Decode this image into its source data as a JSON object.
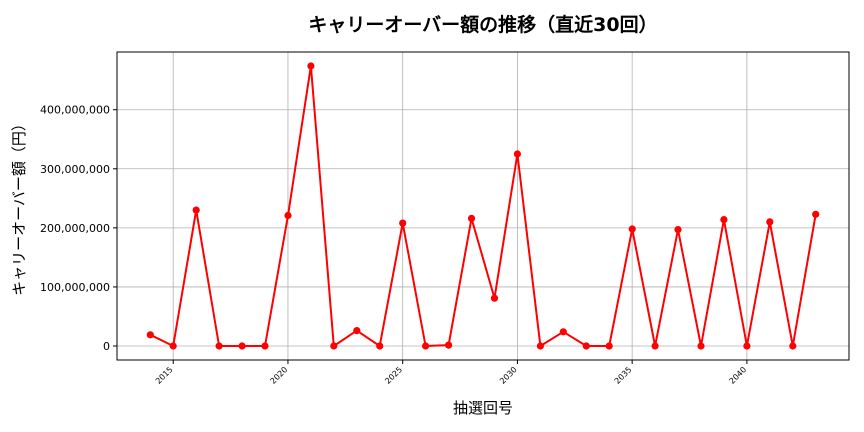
{
  "chart_data": {
    "type": "line",
    "title": "キャリーオーバー額の推移（直近30回）",
    "xlabel": "抽選回号",
    "ylabel": "キャリーオーバー額（円）",
    "x": [
      2014,
      2015,
      2016,
      2017,
      2018,
      2019,
      2020,
      2021,
      2022,
      2023,
      2024,
      2025,
      2026,
      2027,
      2028,
      2029,
      2030,
      2031,
      2032,
      2033,
      2034,
      2035,
      2036,
      2037,
      2038,
      2039,
      2040,
      2041,
      2042,
      2043
    ],
    "series": [
      {
        "color": "#ff0000",
        "marker": "circle",
        "values": [
          19000000,
          0,
          230000000,
          0,
          0,
          0,
          221000000,
          474000000,
          0,
          26000000,
          0,
          208000000,
          0,
          1500000,
          216000000,
          81000000,
          325000000,
          0,
          24000000,
          0,
          0,
          198000000,
          0,
          197000000,
          0,
          214000000,
          0,
          210000000,
          0,
          223000000
        ]
      }
    ],
    "xticks": [
      2015,
      2020,
      2025,
      2030,
      2035,
      2040
    ],
    "xtick_labels": [
      "2015",
      "2020",
      "2025",
      "2030",
      "2035",
      "2040"
    ],
    "yticks": [
      0,
      100000000,
      200000000,
      300000000,
      400000000
    ],
    "ytick_labels": [
      "0",
      "100,000,000",
      "200,000,000",
      "300,000,000",
      "400,000,000"
    ],
    "xlim": [
      2012.55,
      2044.45
    ],
    "ylim": [
      -23700000,
      497700000
    ],
    "grid": true,
    "legend": "none"
  }
}
